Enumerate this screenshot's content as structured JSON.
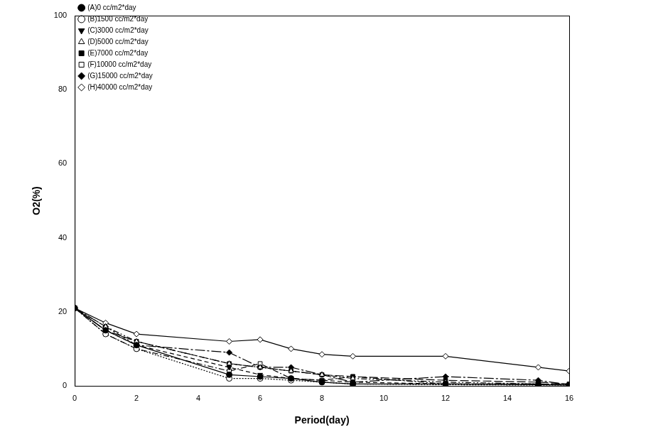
{
  "chart_data": {
    "type": "line",
    "x_label": "Period(day)",
    "y_label": "O2(%)",
    "x": [
      0,
      1,
      2,
      5,
      6,
      7,
      8,
      9,
      12,
      15,
      16
    ],
    "xlim": [
      0,
      16
    ],
    "xticks": [
      0,
      2,
      4,
      6,
      8,
      10,
      12,
      14,
      16
    ],
    "ylim": [
      0,
      100
    ],
    "yticks": [
      0,
      20,
      40,
      60,
      80,
      100
    ],
    "grid": false,
    "legend": "top-left",
    "series": [
      {
        "name": "(A)0 cc/m2*day",
        "color": "#000000",
        "marker": "filled circle",
        "line_style": "solid",
        "values": [
          21,
          15,
          11,
          3,
          2.5,
          2,
          1,
          0.5,
          0.5,
          0.3,
          0.2
        ]
      },
      {
        "name": "(B)1500 cc/m2*day",
        "color": "#000000",
        "marker": "open circle",
        "line_style": "dotted",
        "values": [
          21,
          14,
          10,
          2,
          2,
          1.5,
          1,
          0.5,
          0.3,
          0.2,
          0.2
        ]
      },
      {
        "name": "(C)3000 cc/m2*day",
        "color": "#000000",
        "marker": "filled triangle-down",
        "line_style": "dashed",
        "values": [
          21,
          15,
          11,
          5,
          3,
          2,
          1.5,
          1,
          0.5,
          0.5,
          0.3
        ]
      },
      {
        "name": "(D)5000 cc/m2*day",
        "color": "#000000",
        "marker": "open triangle",
        "line_style": "dashdotdot",
        "values": [
          21,
          16,
          12,
          6,
          5,
          4,
          3,
          2,
          1,
          0.5,
          0.3
        ]
      },
      {
        "name": "(E)7000 cc/m2*day",
        "color": "#000000",
        "marker": "filled square",
        "line_style": "longdash",
        "values": [
          21,
          15,
          12,
          6,
          5,
          4,
          3,
          2.5,
          1.5,
          1,
          0.5
        ]
      },
      {
        "name": "(F)10000 cc/m2*day",
        "color": "#000000",
        "marker": "open square",
        "line_style": "dashdot",
        "values": [
          21,
          14,
          10,
          4,
          6,
          2,
          1.5,
          2.5,
          0.5,
          0.5,
          0.3
        ]
      },
      {
        "name": "(G)15000 cc/m2*day",
        "color": "#000000",
        "marker": "filled diamond",
        "line_style": "longdashdot",
        "values": [
          21,
          16,
          11,
          9,
          5,
          5,
          3,
          1,
          2.5,
          1.5,
          0.3
        ]
      },
      {
        "name": "(H)40000 cc/m2*day",
        "color": "#000000",
        "marker": "open diamond",
        "line_style": "solid",
        "values": [
          21,
          17,
          14,
          12,
          12.5,
          10,
          8.5,
          8,
          8,
          5,
          4
        ]
      }
    ]
  }
}
